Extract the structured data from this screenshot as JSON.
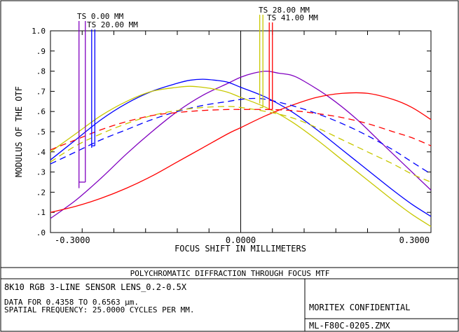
{
  "chart_data": {
    "type": "line",
    "xlabel": "FOCUS SHIFT IN MILLIMETERS",
    "ylabel": "MODULUS OF THE OTF",
    "xlim": [
      -0.3,
      0.3
    ],
    "ylim": [
      0.0,
      1.0
    ],
    "x_ticks": [
      {
        "value": -0.3,
        "label": "-0.3000"
      },
      {
        "value": 0.0,
        "label": "0.0000"
      },
      {
        "value": 0.3,
        "label": "0.3000"
      }
    ],
    "y_ticks": [
      {
        "value": 0.0,
        "label": ".0"
      },
      {
        "value": 0.1,
        "label": ".1"
      },
      {
        "value": 0.2,
        "label": ".2"
      },
      {
        "value": 0.3,
        "label": ".3"
      },
      {
        "value": 0.4,
        "label": ".4"
      },
      {
        "value": 0.5,
        "label": ".5"
      },
      {
        "value": 0.6,
        "label": ".6"
      },
      {
        "value": 0.7,
        "label": ".7"
      },
      {
        "value": 0.8,
        "label": ".8"
      },
      {
        "value": 0.9,
        "label": ".9"
      },
      {
        "value": 1.0,
        "label": "1.0"
      }
    ],
    "field_labels": [
      {
        "text": "TS 0.00 MM",
        "color": "#8000c0"
      },
      {
        "text": "TS 20.00 MM",
        "color": "#0000ff"
      },
      {
        "text": "TS 28.00 MM",
        "color": "#c8c800"
      },
      {
        "text": "TS 41.00 MM",
        "color": "#ff0000"
      }
    ],
    "series": [
      {
        "color": "#8000c0",
        "style": "solid",
        "points": [
          [
            -0.3,
            0.07
          ],
          [
            -0.26,
            0.16
          ],
          [
            -0.22,
            0.27
          ],
          [
            -0.18,
            0.39
          ],
          [
            -0.14,
            0.5
          ],
          [
            -0.1,
            0.6
          ],
          [
            -0.06,
            0.68
          ],
          [
            -0.02,
            0.74
          ],
          [
            0.0,
            0.77
          ],
          [
            0.02,
            0.79
          ],
          [
            0.04,
            0.8
          ],
          [
            0.06,
            0.79
          ],
          [
            0.08,
            0.78
          ],
          [
            0.1,
            0.75
          ],
          [
            0.14,
            0.67
          ],
          [
            0.18,
            0.57
          ],
          [
            0.22,
            0.45
          ],
          [
            0.26,
            0.33
          ],
          [
            0.3,
            0.21
          ]
        ]
      },
      {
        "color": "#0000ff",
        "style": "solid",
        "points": [
          [
            -0.3,
            0.36
          ],
          [
            -0.26,
            0.46
          ],
          [
            -0.22,
            0.56
          ],
          [
            -0.18,
            0.64
          ],
          [
            -0.14,
            0.7
          ],
          [
            -0.1,
            0.74
          ],
          [
            -0.08,
            0.755
          ],
          [
            -0.06,
            0.76
          ],
          [
            -0.04,
            0.755
          ],
          [
            -0.02,
            0.745
          ],
          [
            0.0,
            0.72
          ],
          [
            0.04,
            0.67
          ],
          [
            0.08,
            0.6
          ],
          [
            0.12,
            0.51
          ],
          [
            0.16,
            0.41
          ],
          [
            0.2,
            0.31
          ],
          [
            0.24,
            0.21
          ],
          [
            0.27,
            0.14
          ],
          [
            0.3,
            0.08
          ]
        ]
      },
      {
        "color": "#c8c800",
        "style": "solid",
        "points": [
          [
            -0.3,
            0.4
          ],
          [
            -0.26,
            0.49
          ],
          [
            -0.22,
            0.58
          ],
          [
            -0.18,
            0.65
          ],
          [
            -0.14,
            0.7
          ],
          [
            -0.1,
            0.72
          ],
          [
            -0.08,
            0.725
          ],
          [
            -0.06,
            0.72
          ],
          [
            -0.04,
            0.71
          ],
          [
            -0.02,
            0.695
          ],
          [
            0.0,
            0.67
          ],
          [
            0.04,
            0.62
          ],
          [
            0.08,
            0.55
          ],
          [
            0.12,
            0.46
          ],
          [
            0.16,
            0.36
          ],
          [
            0.2,
            0.26
          ],
          [
            0.24,
            0.16
          ],
          [
            0.27,
            0.09
          ],
          [
            0.3,
            0.03
          ]
        ]
      },
      {
        "color": "#ff0000",
        "style": "solid",
        "points": [
          [
            -0.3,
            0.1
          ],
          [
            -0.26,
            0.13
          ],
          [
            -0.22,
            0.17
          ],
          [
            -0.18,
            0.22
          ],
          [
            -0.14,
            0.28
          ],
          [
            -0.1,
            0.35
          ],
          [
            -0.06,
            0.42
          ],
          [
            -0.02,
            0.49
          ],
          [
            0.0,
            0.52
          ],
          [
            0.04,
            0.58
          ],
          [
            0.08,
            0.63
          ],
          [
            0.12,
            0.67
          ],
          [
            0.16,
            0.69
          ],
          [
            0.2,
            0.69
          ],
          [
            0.24,
            0.66
          ],
          [
            0.27,
            0.62
          ],
          [
            0.3,
            0.56
          ]
        ]
      },
      {
        "color": "#0000ff",
        "style": "dashed",
        "points": [
          [
            -0.3,
            0.34
          ],
          [
            -0.26,
            0.4
          ],
          [
            -0.22,
            0.46
          ],
          [
            -0.18,
            0.51
          ],
          [
            -0.14,
            0.56
          ],
          [
            -0.1,
            0.6
          ],
          [
            -0.06,
            0.63
          ],
          [
            -0.02,
            0.65
          ],
          [
            0.0,
            0.66
          ],
          [
            0.02,
            0.665
          ],
          [
            0.04,
            0.66
          ],
          [
            0.08,
            0.63
          ],
          [
            0.12,
            0.59
          ],
          [
            0.16,
            0.54
          ],
          [
            0.2,
            0.48
          ],
          [
            0.24,
            0.41
          ],
          [
            0.27,
            0.35
          ],
          [
            0.3,
            0.29
          ]
        ]
      },
      {
        "color": "#c8c800",
        "style": "dashed",
        "points": [
          [
            -0.3,
            0.35
          ],
          [
            -0.26,
            0.43
          ],
          [
            -0.22,
            0.49
          ],
          [
            -0.18,
            0.54
          ],
          [
            -0.14,
            0.58
          ],
          [
            -0.1,
            0.605
          ],
          [
            -0.06,
            0.62
          ],
          [
            -0.02,
            0.625
          ],
          [
            0.0,
            0.62
          ],
          [
            0.04,
            0.6
          ],
          [
            0.08,
            0.57
          ],
          [
            0.12,
            0.52
          ],
          [
            0.16,
            0.46
          ],
          [
            0.2,
            0.4
          ],
          [
            0.24,
            0.34
          ],
          [
            0.27,
            0.29
          ],
          [
            0.3,
            0.25
          ]
        ]
      },
      {
        "color": "#ff0000",
        "style": "dashed",
        "points": [
          [
            -0.3,
            0.41
          ],
          [
            -0.26,
            0.46
          ],
          [
            -0.22,
            0.51
          ],
          [
            -0.18,
            0.55
          ],
          [
            -0.14,
            0.58
          ],
          [
            -0.1,
            0.595
          ],
          [
            -0.06,
            0.605
          ],
          [
            -0.02,
            0.61
          ],
          [
            0.0,
            0.61
          ],
          [
            0.04,
            0.61
          ],
          [
            0.08,
            0.605
          ],
          [
            0.12,
            0.59
          ],
          [
            0.16,
            0.57
          ],
          [
            0.2,
            0.54
          ],
          [
            0.24,
            0.5
          ],
          [
            0.27,
            0.47
          ],
          [
            0.3,
            0.43
          ]
        ]
      }
    ],
    "field_markers": [
      {
        "color": "#8000c0",
        "x": -0.255,
        "y_low": 0.22,
        "label_index": 0
      },
      {
        "color": "#8000c0",
        "x": -0.245,
        "y_low": 0.25,
        "label_index": 0
      },
      {
        "color": "#0000ff",
        "x": -0.235,
        "y_low": 0.42,
        "label_index": 1
      },
      {
        "color": "#0000ff",
        "x": -0.23,
        "y_low": 0.43,
        "label_index": 1
      },
      {
        "color": "#c8c800",
        "x": 0.03,
        "y_low": 0.64,
        "label_index": 2
      },
      {
        "color": "#c8c800",
        "x": 0.035,
        "y_low": 0.62,
        "label_index": 2
      },
      {
        "color": "#ff0000",
        "x": 0.045,
        "y_low": 0.61,
        "label_index": 3
      },
      {
        "color": "#ff0000",
        "x": 0.05,
        "y_low": 0.61,
        "label_index": 3
      }
    ]
  },
  "info": {
    "title": "POLYCHROMATIC DIFFRACTION THROUGH FOCUS MTF",
    "lens_name": "8K10 RGB 3-LINE SENSOR LENS_0.2-0.5X",
    "data_range": "DATA FOR 0.4358 TO 0.6563 µm.",
    "spatial_frequency": "SPATIAL FREQUENCY: 25.0000 CYCLES PER MM.",
    "confidential": "MORITEX CONFIDENTIAL",
    "file_name": "ML-F80C-0205.ZMX"
  }
}
